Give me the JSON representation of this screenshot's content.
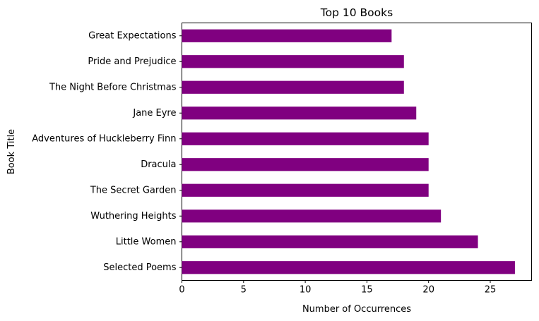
{
  "chart_data": {
    "type": "bar",
    "orientation": "horizontal",
    "title": "Top 10 Books",
    "xlabel": "Number of Occurrences",
    "ylabel": "Book Title",
    "categories": [
      "Selected Poems",
      "Little Women",
      "Wuthering Heights",
      "The Secret Garden",
      "Dracula",
      "Adventures of Huckleberry Finn",
      "Jane Eyre",
      "The Night Before Christmas",
      "Pride and Prejudice",
      "Great Expectations"
    ],
    "values": [
      27,
      24,
      21,
      20,
      20,
      20,
      19,
      18,
      18,
      17
    ],
    "xlim": [
      0,
      28.35
    ],
    "xticks": [
      0,
      5,
      10,
      15,
      20,
      25
    ],
    "bar_color": "#800080",
    "grid": false,
    "legend": "none"
  }
}
